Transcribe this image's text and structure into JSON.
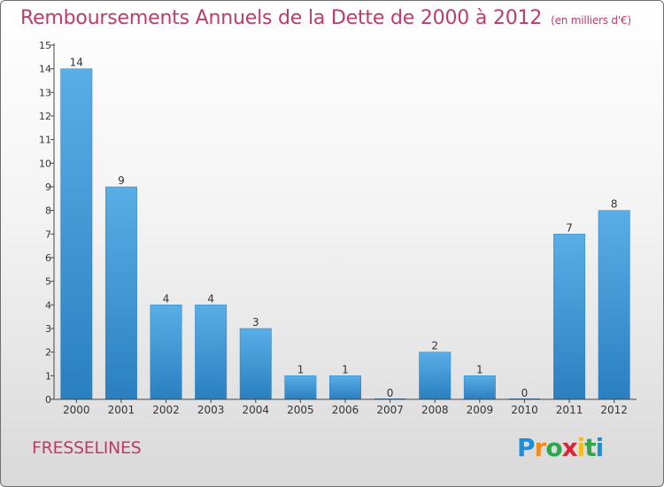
{
  "title": "Remboursements Annuels de la Dette de 2000 à 2012",
  "subtitle": "(en milliers d'€)",
  "footer_city": "FRESSELINES",
  "logo_text": [
    "P",
    "r",
    "o",
    "x",
    "i",
    "t",
    "i"
  ],
  "colors": {
    "title": "#c03a6a",
    "bar_top": "#5aaee6",
    "bar_bottom": "#2a7fc0",
    "axis": "#444444"
  },
  "chart_data": {
    "type": "bar",
    "title": "Remboursements Annuels de la Dette de 2000 à 2012",
    "subtitle": "(en milliers d'€)",
    "xlabel": "",
    "ylabel": "",
    "categories": [
      "2000",
      "2001",
      "2002",
      "2003",
      "2004",
      "2005",
      "2006",
      "2007",
      "2008",
      "2009",
      "2010",
      "2011",
      "2012"
    ],
    "values": [
      14,
      9,
      4,
      4,
      3,
      1,
      1,
      0,
      2,
      1,
      0,
      7,
      8
    ],
    "data_labels": [
      "14",
      "9",
      "4",
      "4",
      "3",
      "1",
      "1",
      "0",
      "2",
      "1",
      "0",
      "7",
      "8"
    ],
    "ylim": [
      0,
      15
    ],
    "yticks": [
      0,
      1,
      2,
      3,
      4,
      5,
      6,
      7,
      8,
      9,
      10,
      11,
      12,
      13,
      14,
      15
    ],
    "grid": false,
    "legend": "none"
  }
}
